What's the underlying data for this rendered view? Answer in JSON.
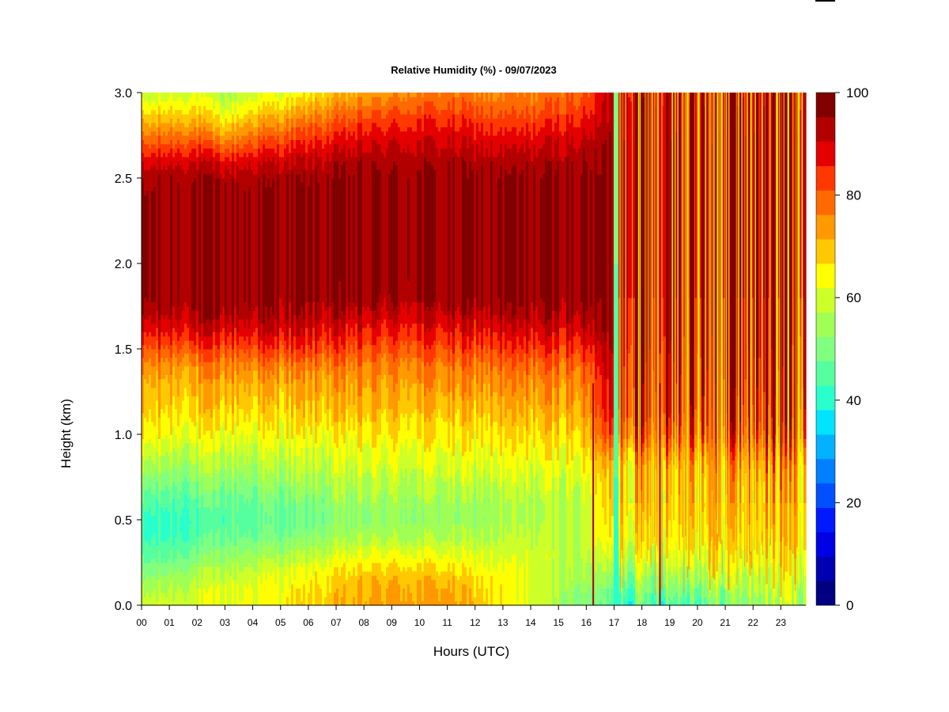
{
  "chart_data": {
    "type": "heatmap",
    "title": "Relative Humidity (%) - 09/07/2023",
    "xlabel": "Hours (UTC)",
    "ylabel": "Height (km)",
    "x_ticks": [
      "00",
      "01",
      "02",
      "03",
      "04",
      "05",
      "06",
      "07",
      "08",
      "09",
      "10",
      "11",
      "12",
      "13",
      "14",
      "15",
      "16",
      "17",
      "18",
      "19",
      "20",
      "21",
      "22",
      "23"
    ],
    "xlim": [
      0,
      23.9
    ],
    "ylim": [
      0.0,
      3.0
    ],
    "y_ticks": [
      "0.0",
      "0.5",
      "1.0",
      "1.5",
      "2.0",
      "2.5",
      "3.0"
    ],
    "colorbar": {
      "range": [
        0,
        100
      ],
      "step": 5,
      "tick_values": [
        0,
        20,
        40,
        60,
        80,
        100
      ],
      "tick_labels": [
        "0",
        "20",
        "40",
        "60",
        "80",
        "100"
      ],
      "colors": [
        "#000080",
        "#0000b2",
        "#0000e5",
        "#0019ff",
        "#0050ff",
        "#0080ff",
        "#00b2ff",
        "#00e5ff",
        "#29ffcd",
        "#55ffa0",
        "#80ff80",
        "#a0ff55",
        "#cdff29",
        "#ffff00",
        "#ffc800",
        "#ff9900",
        "#ff6a00",
        "#ff3800",
        "#e50000",
        "#b20000",
        "#800000"
      ]
    },
    "profile_heights_km": [
      0.0,
      0.1,
      0.2,
      0.3,
      0.4,
      0.5,
      0.6,
      0.7,
      0.8,
      0.9,
      1.0,
      1.1,
      1.2,
      1.3,
      1.4,
      1.5,
      1.6,
      1.7,
      1.8,
      1.9,
      2.0,
      2.1,
      2.2,
      2.3,
      2.4,
      2.5,
      2.6,
      2.7,
      2.8,
      2.9,
      3.0
    ],
    "profiles": [
      {
        "hour": 0,
        "rh": [
          62,
          58,
          52,
          47,
          44,
          43,
          46,
          51,
          57,
          62,
          67,
          70,
          72,
          74,
          78,
          84,
          90,
          96,
          100,
          100,
          100,
          100,
          100,
          100,
          100,
          98,
          92,
          84,
          76,
          68,
          60
        ]
      },
      {
        "hour": 1,
        "rh": [
          63,
          60,
          55,
          49,
          45,
          44,
          47,
          52,
          57,
          62,
          67,
          70,
          73,
          75,
          79,
          85,
          92,
          97,
          100,
          100,
          100,
          100,
          100,
          100,
          100,
          99,
          94,
          86,
          78,
          70,
          63
        ]
      },
      {
        "hour": 2,
        "rh": [
          64,
          62,
          58,
          52,
          47,
          45,
          48,
          52,
          57,
          62,
          66,
          70,
          73,
          75,
          79,
          86,
          93,
          98,
          100,
          100,
          100,
          100,
          100,
          100,
          100,
          99,
          95,
          87,
          78,
          70,
          64
        ]
      },
      {
        "hour": 3,
        "rh": [
          65,
          64,
          60,
          55,
          50,
          47,
          49,
          53,
          58,
          62,
          66,
          70,
          73,
          76,
          80,
          86,
          92,
          98,
          100,
          100,
          100,
          100,
          100,
          100,
          100,
          98,
          92,
          82,
          72,
          64,
          58
        ]
      },
      {
        "hour": 4,
        "rh": [
          67,
          66,
          62,
          57,
          51,
          48,
          50,
          54,
          58,
          62,
          66,
          70,
          73,
          76,
          80,
          87,
          93,
          98,
          100,
          100,
          100,
          100,
          100,
          100,
          100,
          98,
          94,
          86,
          78,
          70,
          63
        ]
      },
      {
        "hour": 5,
        "rh": [
          68,
          67,
          64,
          58,
          52,
          49,
          51,
          55,
          59,
          63,
          67,
          70,
          73,
          76,
          80,
          87,
          94,
          98,
          100,
          100,
          100,
          100,
          100,
          100,
          100,
          99,
          95,
          88,
          80,
          72,
          65
        ]
      },
      {
        "hour": 6,
        "rh": [
          70,
          69,
          66,
          60,
          54,
          50,
          52,
          56,
          60,
          63,
          67,
          71,
          74,
          76,
          80,
          87,
          93,
          97,
          100,
          100,
          100,
          100,
          100,
          100,
          100,
          99,
          96,
          90,
          84,
          76,
          68
        ]
      },
      {
        "hour": 7,
        "rh": [
          73,
          72,
          69,
          63,
          57,
          54,
          55,
          58,
          61,
          64,
          67,
          71,
          74,
          76,
          80,
          86,
          91,
          96,
          100,
          100,
          100,
          100,
          100,
          100,
          100,
          100,
          97,
          92,
          86,
          80,
          73
        ]
      },
      {
        "hour": 8,
        "rh": [
          76,
          75,
          71,
          65,
          58,
          55,
          56,
          59,
          62,
          65,
          68,
          72,
          75,
          77,
          80,
          85,
          90,
          95,
          99,
          100,
          100,
          100,
          100,
          100,
          100,
          100,
          98,
          94,
          89,
          83,
          76
        ]
      },
      {
        "hour": 9,
        "rh": [
          77,
          76,
          72,
          66,
          59,
          56,
          57,
          60,
          63,
          66,
          69,
          72,
          75,
          77,
          80,
          85,
          90,
          95,
          99,
          100,
          100,
          100,
          100,
          100,
          100,
          100,
          98,
          95,
          90,
          84,
          78
        ]
      },
      {
        "hour": 10,
        "rh": [
          77,
          76,
          72,
          66,
          59,
          56,
          57,
          60,
          63,
          66,
          69,
          72,
          75,
          78,
          81,
          86,
          91,
          95,
          99,
          100,
          100,
          100,
          100,
          100,
          100,
          100,
          98,
          95,
          91,
          86,
          80
        ]
      },
      {
        "hour": 11,
        "rh": [
          78,
          76,
          71,
          65,
          59,
          56,
          57,
          60,
          63,
          66,
          69,
          72,
          75,
          78,
          81,
          86,
          91,
          96,
          100,
          100,
          100,
          100,
          100,
          100,
          100,
          100,
          98,
          95,
          91,
          86,
          81
        ]
      },
      {
        "hour": 12,
        "rh": [
          74,
          72,
          68,
          64,
          59,
          56,
          57,
          60,
          63,
          66,
          69,
          72,
          75,
          78,
          81,
          86,
          92,
          96,
          100,
          100,
          100,
          100,
          100,
          100,
          100,
          100,
          98,
          94,
          90,
          85,
          80
        ]
      },
      {
        "hour": 13,
        "rh": [
          69,
          68,
          66,
          63,
          60,
          58,
          58,
          61,
          64,
          67,
          70,
          73,
          76,
          78,
          82,
          87,
          92,
          97,
          100,
          100,
          100,
          100,
          100,
          100,
          100,
          100,
          97,
          93,
          88,
          83,
          79
        ]
      },
      {
        "hour": 14,
        "rh": [
          63,
          63,
          64,
          63,
          61,
          59,
          59,
          61,
          64,
          67,
          70,
          73,
          76,
          79,
          82,
          88,
          93,
          97,
          100,
          100,
          100,
          100,
          100,
          100,
          100,
          100,
          98,
          94,
          89,
          84,
          80
        ]
      },
      {
        "hour": 15,
        "rh": [
          58,
          59,
          61,
          62,
          61,
          60,
          60,
          62,
          65,
          68,
          71,
          74,
          77,
          79,
          83,
          88,
          93,
          98,
          100,
          100,
          100,
          100,
          100,
          100,
          100,
          100,
          98,
          95,
          91,
          86,
          82
        ]
      },
      {
        "hour": 16,
        "rh": [
          52,
          55,
          58,
          60,
          61,
          61,
          61,
          63,
          66,
          69,
          72,
          75,
          78,
          80,
          83,
          89,
          94,
          98,
          100,
          100,
          100,
          100,
          100,
          100,
          100,
          100,
          99,
          96,
          92,
          88,
          84
        ]
      },
      {
        "hour": 17,
        "rh": [
          46,
          52,
          58,
          65,
          70,
          72,
          74,
          75,
          76,
          82,
          90,
          94,
          96,
          97,
          98,
          99,
          100,
          100,
          100,
          100,
          100,
          100,
          100,
          100,
          100,
          100,
          100,
          100,
          99,
          99,
          98
        ]
      },
      {
        "hour": 18,
        "rh": [
          47,
          53,
          59,
          65,
          70,
          72,
          74,
          75,
          76,
          82,
          90,
          94,
          96,
          97,
          98,
          99,
          100,
          100,
          100,
          100,
          100,
          100,
          100,
          100,
          100,
          100,
          100,
          100,
          99,
          99,
          98
        ]
      },
      {
        "hour": 19,
        "rh": [
          48,
          55,
          60,
          66,
          70,
          72,
          74,
          75,
          77,
          83,
          90,
          94,
          96,
          97,
          98,
          99,
          100,
          100,
          100,
          100,
          100,
          100,
          100,
          100,
          100,
          100,
          100,
          100,
          99,
          99,
          98
        ]
      },
      {
        "hour": 20,
        "rh": [
          50,
          56,
          61,
          66,
          70,
          72,
          74,
          75,
          77,
          83,
          91,
          94,
          96,
          97,
          98,
          99,
          100,
          100,
          100,
          100,
          100,
          100,
          100,
          100,
          100,
          100,
          100,
          100,
          99,
          99,
          98
        ]
      },
      {
        "hour": 21,
        "rh": [
          52,
          57,
          62,
          66,
          70,
          72,
          74,
          75,
          77,
          83,
          91,
          94,
          96,
          97,
          98,
          99,
          100,
          100,
          100,
          100,
          100,
          100,
          100,
          100,
          100,
          100,
          100,
          100,
          99,
          99,
          98
        ]
      },
      {
        "hour": 22,
        "rh": [
          56,
          60,
          64,
          68,
          71,
          73,
          74,
          76,
          78,
          84,
          91,
          94,
          96,
          97,
          98,
          99,
          100,
          100,
          100,
          100,
          100,
          100,
          100,
          100,
          100,
          100,
          100,
          100,
          99,
          99,
          98
        ]
      },
      {
        "hour": 23,
        "rh": [
          60,
          63,
          66,
          69,
          72,
          73,
          75,
          76,
          78,
          84,
          91,
          94,
          96,
          97,
          98,
          99,
          100,
          100,
          100,
          100,
          100,
          100,
          100,
          100,
          100,
          100,
          100,
          100,
          99,
          99,
          98
        ]
      }
    ]
  }
}
